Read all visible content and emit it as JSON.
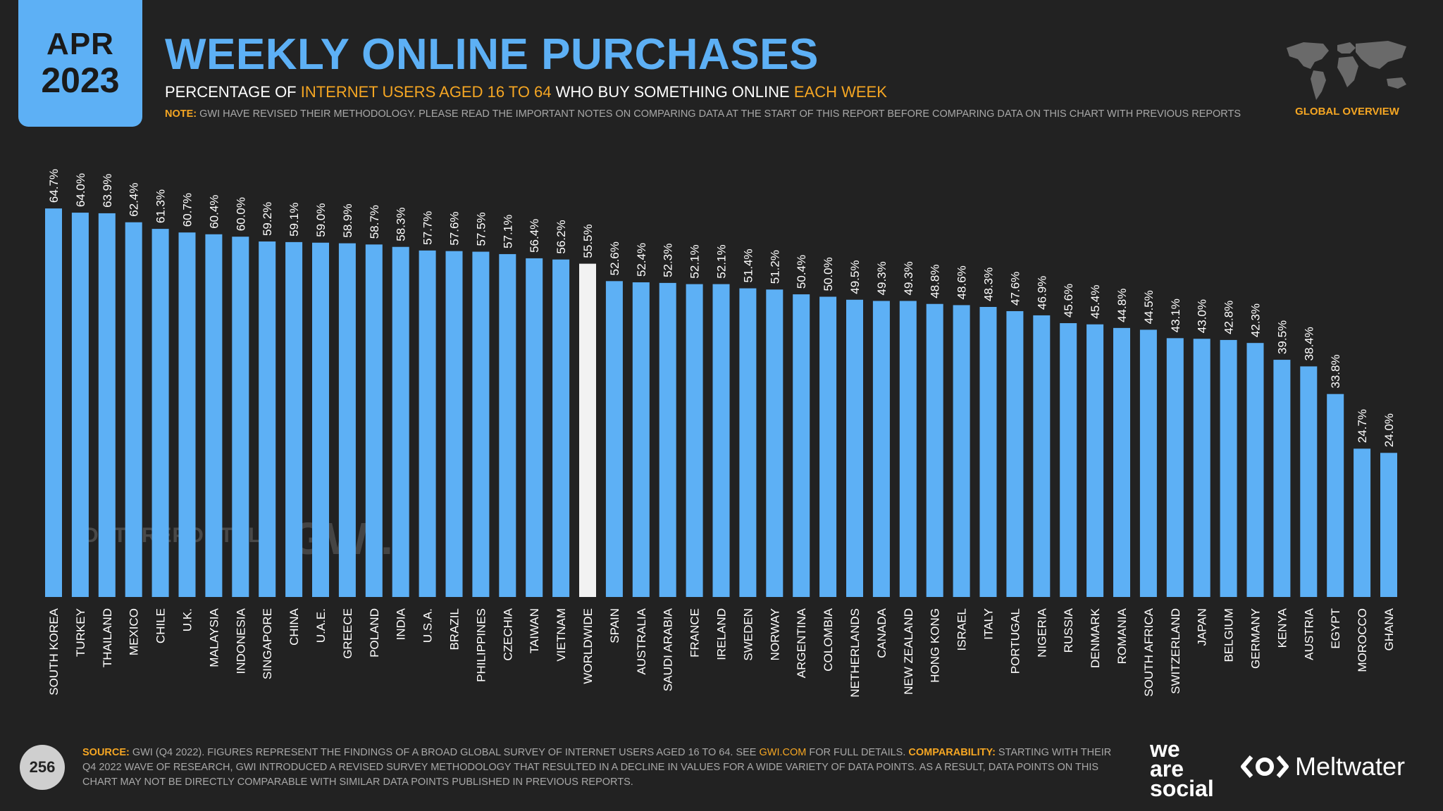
{
  "header": {
    "month": "APR",
    "year": "2023",
    "title": "WEEKLY ONLINE PURCHASES",
    "subtitle_pre": "PERCENTAGE OF ",
    "subtitle_hl1": "INTERNET USERS AGED 16 TO 64",
    "subtitle_mid": " WHO BUY SOMETHING ONLINE ",
    "subtitle_hl2": "EACH WEEK",
    "note_label": "NOTE:",
    "note_text": " GWI HAVE REVISED THEIR METHODOLOGY. PLEASE READ THE IMPORTANT NOTES ON COMPARING DATA AT THE START OF THIS REPORT BEFORE COMPARING DATA ON THIS CHART WITH PREVIOUS REPORTS",
    "overview_label": "GLOBAL OVERVIEW"
  },
  "watermarks": {
    "datareportal": "DATAREPORTAL",
    "gwi": "GWI."
  },
  "footer": {
    "page_number": "256",
    "source_label": "SOURCE:",
    "source_text": " GWI (Q4 2022). FIGURES REPRESENT THE FINDINGS OF A BROAD GLOBAL SURVEY OF INTERNET USERS AGED 16 TO 64. SEE ",
    "source_link": "GWI.COM",
    "source_text2": " FOR FULL DETAILS. ",
    "comparability_label": "COMPARABILITY:",
    "comparability_text": " STARTING WITH THEIR Q4 2022 WAVE OF RESEARCH, GWI INTRODUCED A REVISED SURVEY METHODOLOGY THAT RESULTED IN A DECLINE IN VALUES FOR A WIDE VARIETY OF DATA POINTS. AS A RESULT, DATA POINTS ON THIS CHART MAY NOT BE DIRECTLY COMPARABLE WITH SIMILAR DATA POINTS PUBLISHED IN PREVIOUS REPORTS.",
    "brand1_line1": "we",
    "brand1_line2": "are",
    "brand1_line3": "social",
    "brand2": "Meltwater"
  },
  "colors": {
    "bar": "#5db0f5",
    "highlight_bar": "#f2f2f2",
    "accent": "#f5a623",
    "background": "#222222"
  },
  "icons": {
    "map": "world-map-icon",
    "meltwater": "meltwater-logo-icon"
  },
  "chart_data": {
    "type": "bar",
    "highlight": "WORLDWIDE",
    "ylim": [
      0,
      100
    ],
    "categories": [
      "SOUTH KOREA",
      "TURKEY",
      "THAILAND",
      "MEXICO",
      "CHILE",
      "U.K.",
      "MALAYSIA",
      "INDONESIA",
      "SINGAPORE",
      "CHINA",
      "U.A.E.",
      "GREECE",
      "POLAND",
      "INDIA",
      "U.S.A.",
      "BRAZIL",
      "PHILIPPINES",
      "CZECHIA",
      "TAIWAN",
      "VIETNAM",
      "WORLDWIDE",
      "SPAIN",
      "AUSTRALIA",
      "SAUDI ARABIA",
      "FRANCE",
      "IRELAND",
      "SWEDEN",
      "NORWAY",
      "ARGENTINA",
      "COLOMBIA",
      "NETHERLANDS",
      "CANADA",
      "NEW ZEALAND",
      "HONG KONG",
      "ISRAEL",
      "ITALY",
      "PORTUGAL",
      "NIGERIA",
      "RUSSIA",
      "DENMARK",
      "ROMANIA",
      "SOUTH AFRICA",
      "SWITZERLAND",
      "JAPAN",
      "BELGIUM",
      "GERMANY",
      "KENYA",
      "AUSTRIA",
      "EGYPT",
      "MOROCCO",
      "GHANA"
    ],
    "values": [
      64.7,
      64.0,
      63.9,
      62.4,
      61.3,
      60.7,
      60.4,
      60.0,
      59.2,
      59.1,
      59.0,
      58.9,
      58.7,
      58.3,
      57.7,
      57.6,
      57.5,
      57.1,
      56.4,
      56.2,
      55.5,
      52.6,
      52.4,
      52.3,
      52.1,
      52.1,
      51.4,
      51.2,
      50.4,
      50.0,
      49.5,
      49.3,
      49.3,
      48.8,
      48.6,
      48.3,
      47.6,
      46.9,
      45.6,
      45.4,
      44.8,
      44.5,
      43.1,
      43.0,
      42.8,
      42.3,
      39.5,
      38.4,
      33.8,
      24.7,
      24.0
    ],
    "labels": [
      "64.7%",
      "64.0%",
      "63.9%",
      "62.4%",
      "61.3%",
      "60.7%",
      "60.4%",
      "60.0%",
      "59.2%",
      "59.1%",
      "59.0%",
      "58.9%",
      "58.7%",
      "58.3%",
      "57.7%",
      "57.6%",
      "57.5%",
      "57.1%",
      "56.4%",
      "56.2%",
      "55.5%",
      "52.6%",
      "52.4%",
      "52.3%",
      "52.1%",
      "52.1%",
      "51.4%",
      "51.2%",
      "50.4%",
      "50.0%",
      "49.5%",
      "49.3%",
      "49.3%",
      "48.8%",
      "48.6%",
      "48.3%",
      "47.6%",
      "46.9%",
      "45.6%",
      "45.4%",
      "44.8%",
      "44.5%",
      "43.1%",
      "43.0%",
      "42.8%",
      "42.3%",
      "39.5%",
      "38.4%",
      "33.8%",
      "24.7%",
      "24.0%"
    ]
  }
}
